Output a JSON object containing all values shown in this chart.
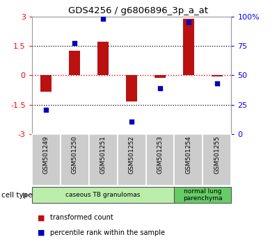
{
  "title": "GDS4256 / g6806896_3p_a_at",
  "samples": [
    "GSM501249",
    "GSM501250",
    "GSM501251",
    "GSM501252",
    "GSM501253",
    "GSM501254",
    "GSM501255"
  ],
  "transformed_count": [
    -0.85,
    1.25,
    1.7,
    -1.35,
    -0.12,
    2.9,
    -0.05
  ],
  "percentile_rank": [
    -1.75,
    1.65,
    2.9,
    -2.35,
    -0.65,
    2.7,
    -0.4
  ],
  "ylim": [
    -3,
    3
  ],
  "yticks_left": [
    -3,
    -1.5,
    0,
    1.5,
    3
  ],
  "yticks_right": [
    0,
    25,
    50,
    75,
    100
  ],
  "hlines_black": [
    -1.5,
    1.5
  ],
  "hline_red": 0,
  "bar_color": "#bb1111",
  "dot_color": "#0000bb",
  "cell_type_groups": [
    {
      "label": "caseous TB granulomas",
      "indices": [
        0,
        1,
        2,
        3,
        4
      ],
      "color": "#bbeeaa"
    },
    {
      "label": "normal lung\nparenchyma",
      "indices": [
        5,
        6
      ],
      "color": "#66cc66"
    }
  ],
  "cell_type_label": "cell type",
  "legend_bar": "transformed count",
  "legend_dot": "percentile rank within the sample",
  "background_color": "#ffffff",
  "plot_bg": "#ffffff",
  "tick_box_color": "#cccccc",
  "bar_width": 0.4
}
